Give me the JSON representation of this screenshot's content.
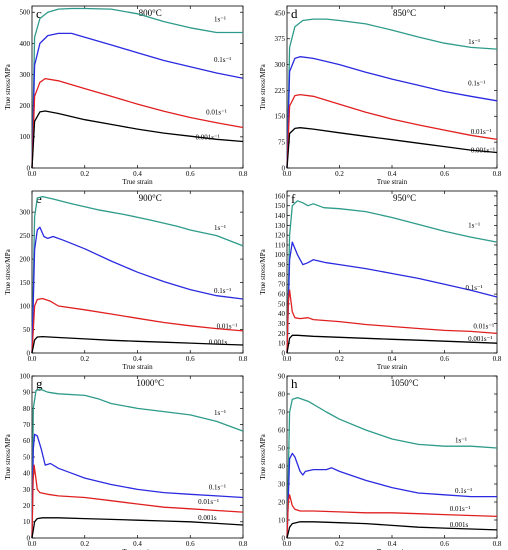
{
  "chart_data": [
    {
      "panel": "c",
      "temperature": "800°C",
      "type": "line",
      "xlabel": "True strain",
      "ylabel": "True stress/MPa",
      "xlim": [
        0,
        0.8
      ],
      "ylim": [
        0,
        520
      ],
      "xticks": [
        "0.0",
        "0.2",
        "0.4",
        "0.6",
        "0.8"
      ],
      "xtick_values": [
        0,
        0.2,
        0.4,
        0.6,
        0.8
      ],
      "yticks": [
        "0",
        "100",
        "200",
        "300",
        "400",
        "500"
      ],
      "ytick_values": [
        0,
        100,
        200,
        300,
        400,
        500
      ],
      "series": [
        {
          "name": "1s⁻¹",
          "color": "#2e9b8a",
          "x": [
            0,
            0.01,
            0.03,
            0.06,
            0.1,
            0.15,
            0.2,
            0.3,
            0.4,
            0.5,
            0.6,
            0.7,
            0.8
          ],
          "y": [
            0,
            420,
            480,
            500,
            510,
            512,
            512,
            510,
            495,
            470,
            450,
            435,
            435
          ]
        },
        {
          "name": "0.1s⁻¹",
          "color": "#2a2ae0",
          "x": [
            0,
            0.01,
            0.03,
            0.06,
            0.1,
            0.15,
            0.2,
            0.3,
            0.4,
            0.5,
            0.6,
            0.7,
            0.8
          ],
          "y": [
            0,
            330,
            400,
            425,
            432,
            432,
            420,
            395,
            370,
            345,
            325,
            305,
            288
          ]
        },
        {
          "name": "0.01s⁻¹",
          "color": "#e02020",
          "x": [
            0,
            0.01,
            0.03,
            0.05,
            0.1,
            0.2,
            0.3,
            0.4,
            0.5,
            0.6,
            0.7,
            0.8
          ],
          "y": [
            0,
            230,
            275,
            287,
            280,
            255,
            230,
            205,
            182,
            162,
            145,
            130
          ]
        },
        {
          "name": "0.001s⁻¹",
          "color": "#000000",
          "x": [
            0,
            0.01,
            0.03,
            0.05,
            0.1,
            0.2,
            0.3,
            0.4,
            0.5,
            0.6,
            0.7,
            0.8
          ],
          "y": [
            0,
            150,
            180,
            183,
            175,
            155,
            140,
            125,
            112,
            102,
            92,
            85
          ]
        }
      ]
    },
    {
      "panel": "d",
      "temperature": "850°C",
      "type": "line",
      "xlabel": "True strain",
      "ylabel": "True stress/MPa",
      "xlim": [
        0,
        0.8
      ],
      "ylim": [
        0,
        470
      ],
      "xticks": [
        "0.0",
        "0.2",
        "0.4",
        "0.6",
        "0.8"
      ],
      "xtick_values": [
        0,
        0.2,
        0.4,
        0.6,
        0.8
      ],
      "yticks": [
        "0",
        "75",
        "150",
        "225",
        "300",
        "375",
        "450"
      ],
      "ytick_values": [
        0,
        75,
        150,
        225,
        300,
        375,
        450
      ],
      "series": [
        {
          "name": "1s⁻¹",
          "color": "#2e9b8a",
          "x": [
            0,
            0.01,
            0.03,
            0.06,
            0.1,
            0.15,
            0.2,
            0.3,
            0.4,
            0.5,
            0.6,
            0.7,
            0.8
          ],
          "y": [
            0,
            350,
            410,
            428,
            432,
            432,
            428,
            418,
            400,
            380,
            362,
            350,
            345
          ]
        },
        {
          "name": "0.1s⁻¹",
          "color": "#2a2ae0",
          "x": [
            0,
            0.01,
            0.03,
            0.05,
            0.1,
            0.2,
            0.3,
            0.4,
            0.5,
            0.6,
            0.7,
            0.8
          ],
          "y": [
            0,
            280,
            318,
            323,
            318,
            300,
            278,
            258,
            240,
            222,
            208,
            195
          ]
        },
        {
          "name": "0.01s⁻¹",
          "color": "#e02020",
          "x": [
            0,
            0.01,
            0.03,
            0.05,
            0.1,
            0.2,
            0.3,
            0.4,
            0.5,
            0.6,
            0.7,
            0.8
          ],
          "y": [
            0,
            180,
            210,
            213,
            208,
            185,
            162,
            142,
            125,
            110,
            95,
            83
          ]
        },
        {
          "name": "0.001s⁻¹",
          "color": "#000000",
          "x": [
            0,
            0.01,
            0.03,
            0.05,
            0.1,
            0.2,
            0.3,
            0.4,
            0.5,
            0.6,
            0.7,
            0.8
          ],
          "y": [
            0,
            100,
            115,
            117,
            113,
            102,
            92,
            82,
            72,
            62,
            52,
            45
          ]
        }
      ]
    },
    {
      "panel": "e",
      "temperature": "900°C",
      "type": "line",
      "xlabel": "True strain",
      "ylabel": "True stress/MPa",
      "xlim": [
        0,
        0.8
      ],
      "ylim": [
        0,
        345
      ],
      "xticks": [
        "0.0",
        "0.2",
        "0.4",
        "0.6",
        "0.8"
      ],
      "xtick_values": [
        0,
        0.2,
        0.4,
        0.6,
        0.8
      ],
      "yticks": [
        "0",
        "50",
        "100",
        "150",
        "200",
        "250",
        "300"
      ],
      "ytick_values": [
        0,
        50,
        100,
        150,
        200,
        250,
        300
      ],
      "series": [
        {
          "name": "1s⁻¹",
          "color": "#2e9b8a",
          "x": [
            0,
            0.01,
            0.02,
            0.04,
            0.08,
            0.15,
            0.25,
            0.35,
            0.45,
            0.55,
            0.6,
            0.7,
            0.8
          ],
          "y": [
            0,
            290,
            330,
            333,
            328,
            318,
            305,
            295,
            283,
            270,
            262,
            250,
            228
          ]
        },
        {
          "name": "0.1s⁻¹",
          "color": "#2a2ae0",
          "x": [
            0,
            0.01,
            0.02,
            0.03,
            0.045,
            0.06,
            0.08,
            0.12,
            0.2,
            0.3,
            0.4,
            0.5,
            0.6,
            0.7,
            0.8
          ],
          "y": [
            0,
            220,
            262,
            268,
            248,
            244,
            248,
            240,
            222,
            196,
            172,
            152,
            135,
            122,
            115
          ]
        },
        {
          "name": "0.01s⁻¹",
          "color": "#e02020",
          "x": [
            0,
            0.01,
            0.02,
            0.04,
            0.07,
            0.1,
            0.2,
            0.3,
            0.4,
            0.5,
            0.6,
            0.7,
            0.8
          ],
          "y": [
            0,
            100,
            114,
            116,
            110,
            100,
            92,
            83,
            74,
            65,
            58,
            52,
            47
          ]
        },
        {
          "name": "0.001s",
          "color": "#000000",
          "x": [
            0,
            0.01,
            0.02,
            0.04,
            0.1,
            0.2,
            0.3,
            0.4,
            0.5,
            0.6,
            0.7,
            0.8
          ],
          "y": [
            0,
            28,
            34,
            35,
            33,
            30,
            27,
            25,
            23,
            21,
            19,
            17
          ]
        }
      ]
    },
    {
      "panel": "f",
      "temperature": "950°C",
      "type": "line",
      "xlabel": "True strain",
      "ylabel": "True stress/MPa",
      "xlim": [
        0,
        0.8
      ],
      "ylim": [
        0,
        165
      ],
      "xticks": [
        "0.0",
        "0.2",
        "0.4",
        "0.6",
        "0.8"
      ],
      "xtick_values": [
        0,
        0.2,
        0.4,
        0.6,
        0.8
      ],
      "yticks": [
        "0",
        "10",
        "20",
        "30",
        "40",
        "50",
        "60",
        "70",
        "80",
        "90",
        "100",
        "110",
        "120",
        "130",
        "140",
        "150",
        "160"
      ],
      "ytick_values": [
        0,
        10,
        20,
        30,
        40,
        50,
        60,
        70,
        80,
        90,
        100,
        110,
        120,
        130,
        140,
        150,
        160
      ],
      "series": [
        {
          "name": "1s⁻¹",
          "color": "#2e9b8a",
          "x": [
            0,
            0.01,
            0.02,
            0.04,
            0.06,
            0.08,
            0.1,
            0.14,
            0.2,
            0.3,
            0.4,
            0.5,
            0.6,
            0.7,
            0.8
          ],
          "y": [
            0,
            120,
            150,
            155,
            153,
            150,
            152,
            148,
            147,
            144,
            138,
            131,
            124,
            118,
            113
          ]
        },
        {
          "name": "0.1s⁻¹",
          "color": "#2a2ae0",
          "x": [
            0,
            0.01,
            0.02,
            0.04,
            0.06,
            0.08,
            0.1,
            0.15,
            0.2,
            0.3,
            0.4,
            0.5,
            0.6,
            0.7,
            0.8
          ],
          "y": [
            0,
            95,
            113,
            100,
            90,
            92,
            95,
            92,
            90,
            86,
            81,
            76,
            70,
            64,
            57
          ]
        },
        {
          "name": "0.01s⁻¹",
          "color": "#e02020",
          "x": [
            0,
            0.005,
            0.01,
            0.02,
            0.03,
            0.05,
            0.08,
            0.1,
            0.2,
            0.3,
            0.4,
            0.5,
            0.6,
            0.7,
            0.8
          ],
          "y": [
            0,
            52,
            64,
            42,
            36,
            35,
            36,
            34,
            32,
            29,
            27,
            25,
            23,
            22,
            20
          ]
        },
        {
          "name": "0.001s⁻¹",
          "color": "#000000",
          "x": [
            0,
            0.01,
            0.02,
            0.04,
            0.1,
            0.2,
            0.3,
            0.4,
            0.5,
            0.6,
            0.7,
            0.8
          ],
          "y": [
            0,
            15,
            18,
            18,
            17,
            16,
            15,
            14,
            13,
            12,
            11,
            10
          ]
        }
      ]
    },
    {
      "panel": "g",
      "temperature": "1000°C",
      "type": "line",
      "xlabel": "True strain",
      "ylabel": "True stress/MPa",
      "xlim": [
        0,
        0.8
      ],
      "ylim": [
        0,
        100
      ],
      "xticks": [
        "0.0",
        "0.2",
        "0.4",
        "0.6",
        "0.8"
      ],
      "xtick_values": [
        0,
        0.2,
        0.4,
        0.6,
        0.8
      ],
      "yticks": [
        "0",
        "10",
        "20",
        "30",
        "40",
        "50",
        "60",
        "70",
        "80",
        "90",
        "100"
      ],
      "ytick_values": [
        0,
        10,
        20,
        30,
        40,
        50,
        60,
        70,
        80,
        90,
        100
      ],
      "series": [
        {
          "name": "1s⁻¹",
          "color": "#2e9b8a",
          "x": [
            0,
            0.005,
            0.015,
            0.03,
            0.06,
            0.1,
            0.2,
            0.25,
            0.3,
            0.4,
            0.5,
            0.6,
            0.7,
            0.8
          ],
          "y": [
            0,
            80,
            91,
            92,
            90,
            89,
            88,
            86,
            83,
            80,
            78,
            76,
            72,
            66
          ]
        },
        {
          "name": "0.1s⁻¹",
          "color": "#2a2ae0",
          "x": [
            0,
            0.005,
            0.01,
            0.02,
            0.035,
            0.05,
            0.07,
            0.1,
            0.15,
            0.2,
            0.3,
            0.4,
            0.5,
            0.6,
            0.7,
            0.8
          ],
          "y": [
            0,
            55,
            64,
            63,
            55,
            45,
            46,
            43,
            40,
            37,
            33,
            30,
            28,
            27,
            26,
            25
          ]
        },
        {
          "name": "0.01s⁻¹",
          "color": "#e02020",
          "x": [
            0,
            0.004,
            0.008,
            0.012,
            0.02,
            0.03,
            0.06,
            0.1,
            0.2,
            0.3,
            0.4,
            0.5,
            0.6,
            0.7,
            0.8
          ],
          "y": [
            0,
            35,
            45,
            40,
            30,
            28,
            27,
            26,
            25,
            23,
            21,
            19,
            18,
            17,
            16
          ]
        },
        {
          "name": "0.001s",
          "color": "#000000",
          "x": [
            0,
            0.01,
            0.02,
            0.04,
            0.1,
            0.2,
            0.3,
            0.4,
            0.5,
            0.6,
            0.7,
            0.8
          ],
          "y": [
            0,
            10,
            12,
            12.5,
            12.5,
            12,
            11.5,
            11,
            10.5,
            10,
            9,
            8
          ]
        }
      ]
    },
    {
      "panel": "h",
      "temperature": "1050°C",
      "type": "line",
      "xlabel": "True strain",
      "ylabel": "True stress/MPa",
      "xlim": [
        0,
        0.8
      ],
      "ylim": [
        0,
        90
      ],
      "xticks": [
        "0.0",
        "0.2",
        "0.4",
        "0.6",
        "0.8"
      ],
      "xtick_values": [
        0,
        0.2,
        0.4,
        0.6,
        0.8
      ],
      "yticks": [
        "0",
        "10",
        "20",
        "30",
        "40",
        "50",
        "60",
        "70",
        "80",
        "90"
      ],
      "ytick_values": [
        0,
        10,
        20,
        30,
        40,
        50,
        60,
        70,
        80,
        90
      ],
      "series": [
        {
          "name": "1s⁻¹",
          "color": "#2e9b8a",
          "x": [
            0,
            0.01,
            0.02,
            0.04,
            0.08,
            0.15,
            0.2,
            0.3,
            0.4,
            0.5,
            0.6,
            0.7,
            0.8
          ],
          "y": [
            0,
            70,
            77,
            78,
            76,
            70,
            66,
            60,
            55,
            52,
            51,
            51,
            50
          ]
        },
        {
          "name": "0.1s⁻¹",
          "color": "#2a2ae0",
          "x": [
            0,
            0.01,
            0.02,
            0.03,
            0.05,
            0.06,
            0.07,
            0.1,
            0.15,
            0.17,
            0.2,
            0.3,
            0.4,
            0.5,
            0.6,
            0.7,
            0.8
          ],
          "y": [
            0,
            44,
            47,
            45,
            37,
            35,
            37,
            38,
            38,
            39,
            37,
            32,
            28,
            25,
            24,
            23,
            23
          ]
        },
        {
          "name": "0.01s⁻¹",
          "color": "#e02020",
          "x": [
            0,
            0.005,
            0.01,
            0.02,
            0.03,
            0.05,
            0.1,
            0.2,
            0.3,
            0.4,
            0.5,
            0.6,
            0.7,
            0.8
          ],
          "y": [
            0,
            20,
            24,
            18,
            16,
            15,
            15,
            14.5,
            14,
            14,
            13.5,
            13,
            12.5,
            12
          ]
        },
        {
          "name": "0.001s",
          "color": "#000000",
          "x": [
            0,
            0.01,
            0.02,
            0.05,
            0.1,
            0.2,
            0.3,
            0.4,
            0.5,
            0.6,
            0.7,
            0.8
          ],
          "y": [
            0,
            6,
            8,
            9,
            9,
            8.5,
            8,
            7,
            6,
            5.5,
            5,
            4.5
          ]
        }
      ]
    }
  ]
}
